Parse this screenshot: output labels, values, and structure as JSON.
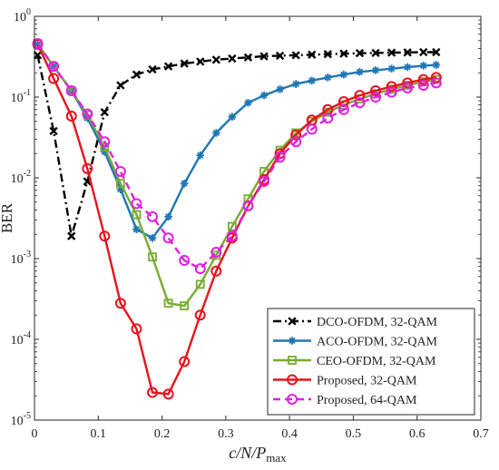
{
  "chart_data": {
    "type": "line",
    "title": "",
    "xlabel": "c/N/P",
    "xlabel_sub": "max",
    "ylabel": "BER",
    "xlim": [
      0,
      0.7
    ],
    "ylim": [
      1e-05,
      1
    ],
    "yscale": "log",
    "grid": false,
    "legend_position": "bottom-right",
    "x_ticks": [
      {
        "value": 0,
        "label": "0"
      },
      {
        "value": 0.1,
        "label": "0.1"
      },
      {
        "value": 0.2,
        "label": "0.2"
      },
      {
        "value": 0.3,
        "label": "0.3"
      },
      {
        "value": 0.4,
        "label": "0.4"
      },
      {
        "value": 0.5,
        "label": "0.5"
      },
      {
        "value": 0.6,
        "label": "0.6"
      },
      {
        "value": 0.7,
        "label": "0.7"
      }
    ],
    "y_ticks": [
      {
        "value": 1e-05,
        "base": "10",
        "exp": "-5"
      },
      {
        "value": 0.0001,
        "base": "10",
        "exp": "-4"
      },
      {
        "value": 0.001,
        "base": "10",
        "exp": "-3"
      },
      {
        "value": 0.01,
        "base": "10",
        "exp": "-2"
      },
      {
        "value": 0.1,
        "base": "10",
        "exp": "-1"
      },
      {
        "value": 1,
        "base": "10",
        "exp": "0"
      }
    ],
    "series": [
      {
        "name": "DCO-OFDM, 32-QAM",
        "color": "#000000",
        "line_style": "dashdot",
        "marker": "x-mark",
        "x": [
          0.005,
          0.03,
          0.058,
          0.083,
          0.11,
          0.135,
          0.16,
          0.185,
          0.21,
          0.235,
          0.26,
          0.285,
          0.31,
          0.335,
          0.36,
          0.385,
          0.41,
          0.435,
          0.46,
          0.485,
          0.51,
          0.535,
          0.56,
          0.585,
          0.61,
          0.63
        ],
        "y": [
          0.33,
          0.038,
          0.0019,
          0.009,
          0.065,
          0.14,
          0.19,
          0.22,
          0.24,
          0.26,
          0.275,
          0.29,
          0.3,
          0.31,
          0.32,
          0.325,
          0.33,
          0.335,
          0.34,
          0.345,
          0.35,
          0.352,
          0.355,
          0.357,
          0.36,
          0.36
        ]
      },
      {
        "name": "ACO-OFDM, 32-QAM",
        "color": "#1f77b4",
        "line_style": "solid",
        "marker": "asterisk",
        "x": [
          0.005,
          0.03,
          0.058,
          0.083,
          0.11,
          0.135,
          0.16,
          0.185,
          0.21,
          0.235,
          0.26,
          0.285,
          0.31,
          0.335,
          0.36,
          0.385,
          0.41,
          0.435,
          0.46,
          0.485,
          0.51,
          0.535,
          0.56,
          0.585,
          0.61,
          0.63
        ],
        "y": [
          0.45,
          0.24,
          0.12,
          0.055,
          0.021,
          0.0072,
          0.0023,
          0.0018,
          0.0033,
          0.0085,
          0.019,
          0.036,
          0.057,
          0.085,
          0.105,
          0.125,
          0.145,
          0.16,
          0.175,
          0.19,
          0.205,
          0.215,
          0.225,
          0.235,
          0.245,
          0.25
        ]
      },
      {
        "name": "CEO-OFDM, 32-QAM",
        "color": "#77ac30",
        "line_style": "solid",
        "marker": "square",
        "x": [
          0.005,
          0.03,
          0.058,
          0.083,
          0.11,
          0.135,
          0.16,
          0.185,
          0.21,
          0.235,
          0.26,
          0.285,
          0.31,
          0.335,
          0.36,
          0.385,
          0.41,
          0.435,
          0.46,
          0.485,
          0.51,
          0.535,
          0.56,
          0.585,
          0.61,
          0.63
        ],
        "y": [
          0.46,
          0.24,
          0.12,
          0.06,
          0.024,
          0.0085,
          0.0035,
          0.00105,
          0.00028,
          0.00026,
          0.00048,
          0.0011,
          0.0025,
          0.0055,
          0.012,
          0.022,
          0.036,
          0.05,
          0.065,
          0.08,
          0.095,
          0.11,
          0.125,
          0.14,
          0.155,
          0.165
        ]
      },
      {
        "name": "Proposed, 32-QAM",
        "color": "#e8121b",
        "line_style": "solid",
        "marker": "circle",
        "x": [
          0.005,
          0.03,
          0.058,
          0.083,
          0.11,
          0.135,
          0.16,
          0.185,
          0.21,
          0.235,
          0.26,
          0.285,
          0.31,
          0.335,
          0.36,
          0.385,
          0.41,
          0.435,
          0.46,
          0.485,
          0.51,
          0.535,
          0.56,
          0.585,
          0.61,
          0.63
        ],
        "y": [
          0.45,
          0.17,
          0.058,
          0.013,
          0.0019,
          0.00028,
          0.000135,
          2.2e-05,
          2.1e-05,
          5.3e-05,
          0.0002,
          0.0007,
          0.0018,
          0.0045,
          0.0095,
          0.02,
          0.034,
          0.052,
          0.07,
          0.088,
          0.105,
          0.12,
          0.135,
          0.15,
          0.165,
          0.175
        ]
      },
      {
        "name": "Proposed, 64-QAM",
        "color": "#e020e0",
        "line_style": "dashed",
        "marker": "circle",
        "x": [
          0.005,
          0.03,
          0.058,
          0.083,
          0.11,
          0.135,
          0.16,
          0.185,
          0.21,
          0.235,
          0.26,
          0.285,
          0.31,
          0.335,
          0.36,
          0.385,
          0.41,
          0.435,
          0.46,
          0.485,
          0.51,
          0.535,
          0.56,
          0.585,
          0.61,
          0.63
        ],
        "y": [
          0.46,
          0.24,
          0.12,
          0.062,
          0.028,
          0.012,
          0.0048,
          0.0033,
          0.0018,
          0.00095,
          0.00075,
          0.0012,
          0.0019,
          0.0045,
          0.009,
          0.018,
          0.028,
          0.04,
          0.055,
          0.07,
          0.085,
          0.1,
          0.115,
          0.13,
          0.14,
          0.15
        ]
      }
    ]
  }
}
